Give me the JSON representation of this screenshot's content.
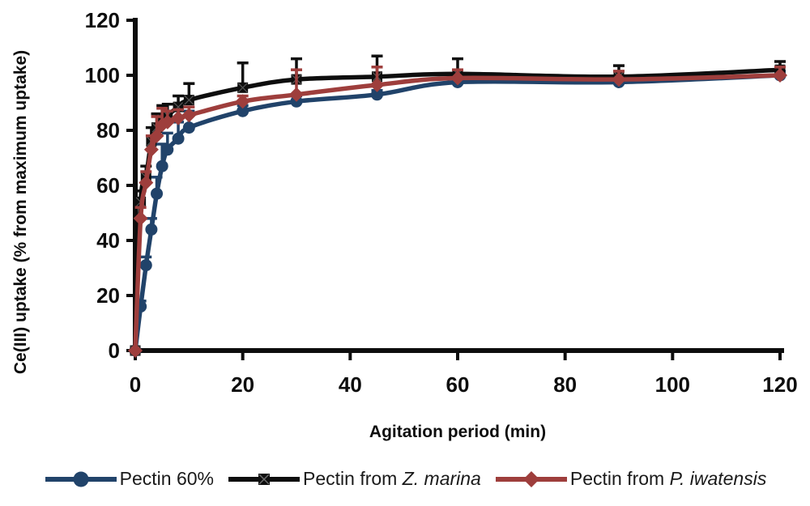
{
  "figure": {
    "background": "#ffffff",
    "text_color": "#0d0d0d"
  },
  "chart_data": {
    "type": "line",
    "title": "",
    "xlabel": "Agitation period (min)",
    "ylabel": "Ce(III) uptake (% from maximum uptake)",
    "xlim": [
      0,
      120
    ],
    "ylim": [
      0,
      120
    ],
    "xticks": [
      0,
      20,
      40,
      60,
      80,
      100,
      120
    ],
    "yticks": [
      0,
      20,
      40,
      60,
      80,
      100,
      120
    ],
    "grid": false,
    "legend_position": "bottom",
    "x": [
      0,
      1,
      2,
      3,
      4,
      5,
      6,
      8,
      10,
      20,
      30,
      45,
      60,
      90,
      120
    ],
    "series": [
      {
        "key": "pectin-60",
        "name": "Pectin 60%",
        "color": "#21436a",
        "marker": "circle",
        "values": [
          0,
          16,
          31,
          44,
          57,
          67,
          73,
          77,
          81,
          87,
          90.5,
          93,
          97.5,
          97.5,
          100
        ],
        "errors_up": [
          0,
          2,
          3,
          4,
          6,
          8,
          6,
          6,
          6,
          2,
          2,
          1.5,
          1.5,
          1.5,
          1.5
        ]
      },
      {
        "key": "pectin-z-marina",
        "name": "Pectin from Z. marina",
        "color": "#0e0e0e",
        "marker": "square-x",
        "values": [
          0,
          54,
          63,
          76,
          81,
          84,
          85.5,
          88.5,
          91,
          95.5,
          98.5,
          99.5,
          100.5,
          99.5,
          102
        ],
        "errors_up": [
          0,
          4,
          4,
          5,
          5,
          5,
          4,
          4,
          6,
          9,
          7.5,
          7.5,
          5.5,
          4,
          3
        ]
      },
      {
        "key": "pectin-p-iwatensis",
        "name": "Pectin from P. iwatensis",
        "color": "#9e3e3c",
        "marker": "diamond",
        "values": [
          0,
          48,
          61,
          73,
          78,
          82,
          83,
          84.5,
          85.5,
          90.5,
          93,
          96.5,
          99,
          98.5,
          100
        ],
        "errors_up": [
          0,
          4,
          4,
          5,
          7,
          6,
          4,
          3,
          3,
          2,
          9,
          6.5,
          3,
          3,
          3
        ]
      }
    ]
  },
  "legend": {
    "items": [
      {
        "prefix": "Pectin 60%",
        "italic": ""
      },
      {
        "prefix": "Pectin from ",
        "italic": "Z. marina"
      },
      {
        "prefix": "Pectin from ",
        "italic": "P. iwatensis"
      }
    ]
  }
}
